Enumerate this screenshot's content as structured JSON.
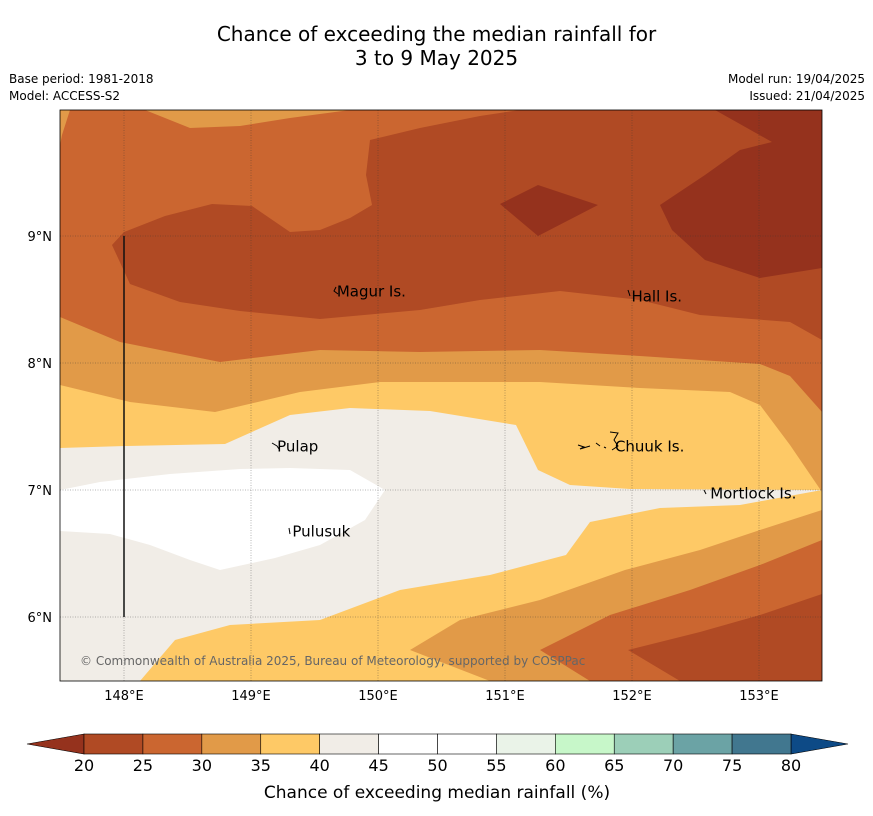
{
  "title": {
    "line1": "Chance of exceeding the median rainfall for",
    "line2": "3 to 9 May 2025"
  },
  "meta": {
    "base_period": "Base period: 1981-2018",
    "model": "Model: ACCESS-S2",
    "model_run": "Model run: 19/04/2025",
    "issued": "Issued: 21/04/2025"
  },
  "map": {
    "lon_ticks": [
      "148°E",
      "149°E",
      "150°E",
      "151°E",
      "152°E",
      "153°E"
    ],
    "lat_ticks": [
      "9°N",
      "8°N",
      "7°N",
      "6°N"
    ],
    "places": [
      {
        "name": "Magur Is.",
        "lon": 149.66,
        "lat": 8.57
      },
      {
        "name": "Hall Is.",
        "lon": 151.98,
        "lat": 8.53
      },
      {
        "name": "Pulap",
        "lon": 149.19,
        "lat": 7.35
      },
      {
        "name": "Chuuk Is.",
        "lon": 151.85,
        "lat": 7.35
      },
      {
        "name": "Mortlock Is.",
        "lon": 152.6,
        "lat": 6.98
      },
      {
        "name": "Pulusuk",
        "lon": 149.31,
        "lat": 6.68
      }
    ],
    "copyright": "© Commonwealth of Australia 2025, Bureau of Meteorology, supported by COSPPac"
  },
  "colorbar": {
    "title": "Chance of exceeding median rainfall (%)",
    "ticks": [
      "20",
      "25",
      "30",
      "35",
      "40",
      "45",
      "50",
      "55",
      "60",
      "65",
      "70",
      "75",
      "80"
    ],
    "colors": [
      "#b04a24",
      "#cb6630",
      "#e19a48",
      "#fec966",
      "#f1ede7",
      "#ffffff",
      "#ffffff",
      "#eaf3e8",
      "#c7f7c9",
      "#9ccfb8",
      "#6ba3a5",
      "#41778f"
    ],
    "under_color": "#95321d",
    "over_color": "#0d4a86"
  }
}
